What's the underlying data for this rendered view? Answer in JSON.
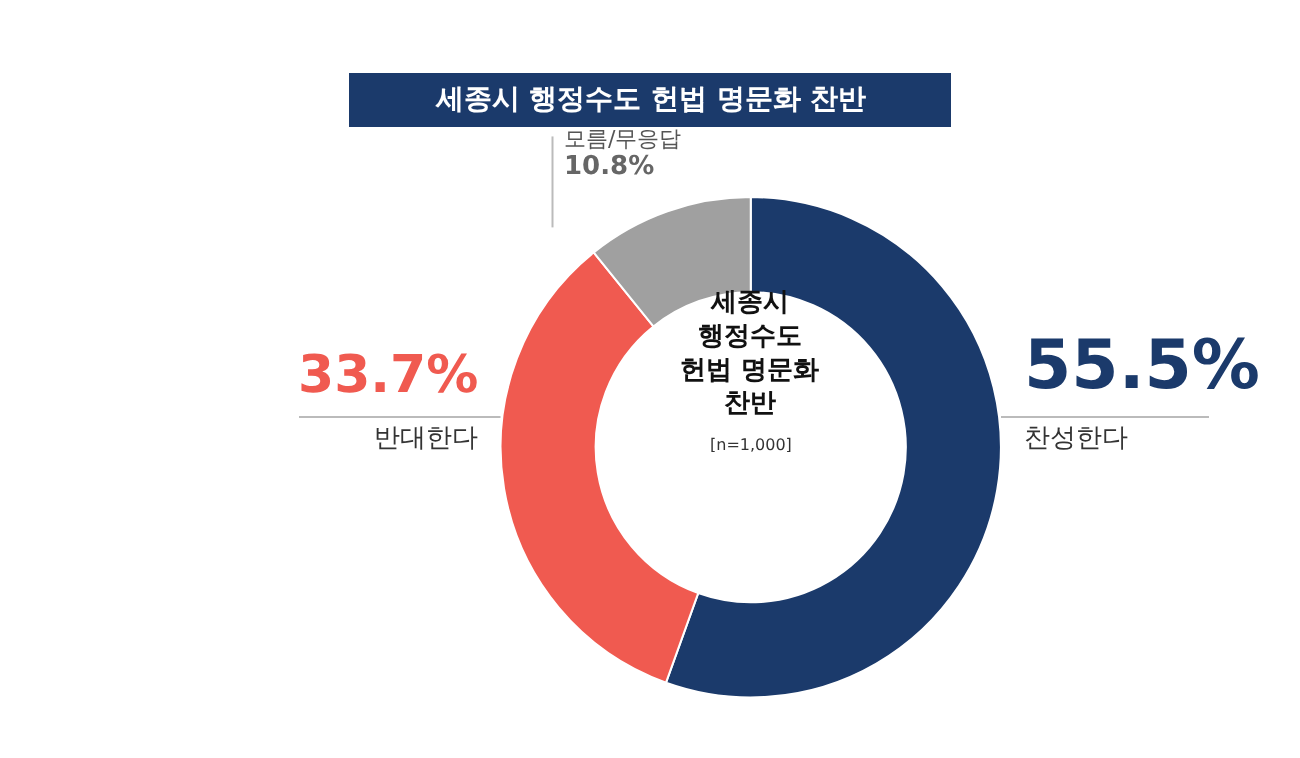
{
  "chart_data": {
    "type": "donut",
    "title": "세종시 행정수도 헌법 명문화 찬반",
    "categories": [
      "찬성한다",
      "반대한다",
      "모름/무응답"
    ],
    "values": [
      55.5,
      33.7,
      10.8
    ],
    "value_labels": [
      "55.5%",
      "33.7%",
      "10.8%"
    ],
    "colors": [
      "#1b3a6b",
      "#f05a50",
      "#a0a0a0"
    ],
    "annotations": [
      "세종시\n행정수도\n헌법 명문화\n찬반",
      "[n=1,000]"
    ],
    "legend": false
  }
}
